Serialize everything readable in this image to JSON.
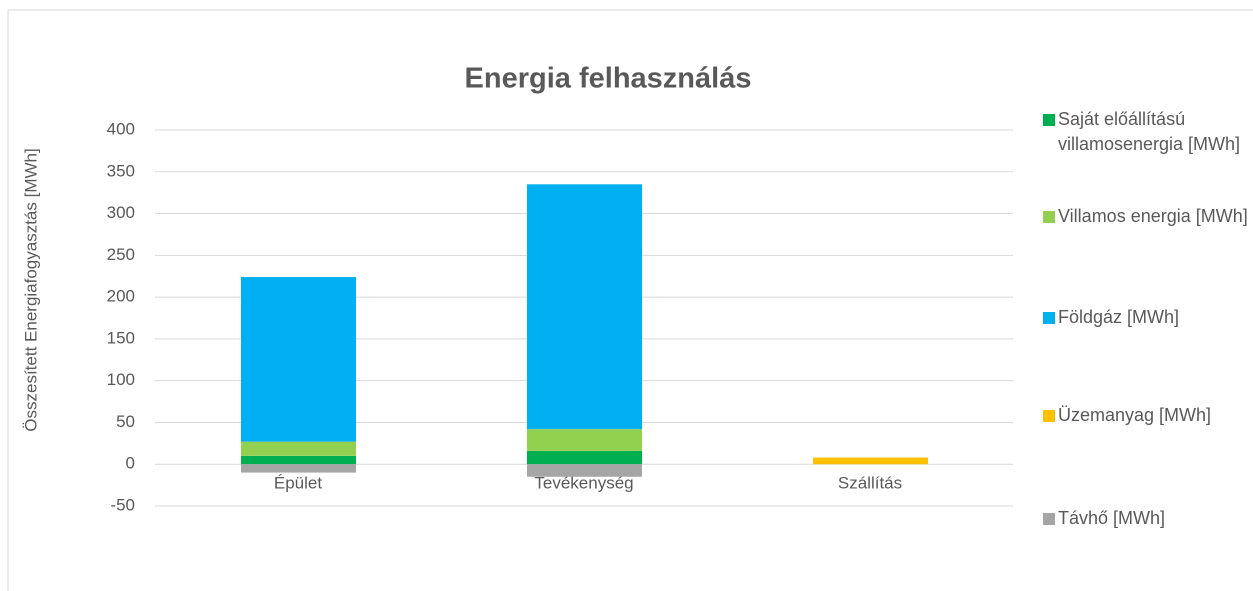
{
  "chart_data": {
    "type": "stacked_bar",
    "title": "Energia felhasználás",
    "y_label": "Összesített Energiafogyasztás [MWh]",
    "categories": [
      "Épület",
      "Tevékenység",
      "Szállítás"
    ],
    "series": [
      {
        "name": "Saját előállítású villamosenergia [MWh]",
        "color": "#00b050",
        "values": [
          10,
          16,
          null
        ]
      },
      {
        "name": "Villamos energia [MWh]",
        "color": "#92d050",
        "values": [
          17,
          26,
          null
        ]
      },
      {
        "name": "Földgáz [MWh]",
        "color": "#00b0f0",
        "values": [
          197,
          293,
          null
        ]
      },
      {
        "name": "Üzemanyag [MWh]",
        "color": "#ffc000",
        "values": [
          null,
          null,
          8
        ]
      },
      {
        "name": "Távhő [MWh]",
        "color": "#a5a5a5",
        "values": [
          -10,
          -15,
          null
        ]
      }
    ],
    "ylim": [
      -50,
      400
    ],
    "yticks": [
      -50,
      0,
      50,
      100,
      150,
      200,
      250,
      300,
      350,
      400
    ],
    "grid": true,
    "legend": "right"
  }
}
